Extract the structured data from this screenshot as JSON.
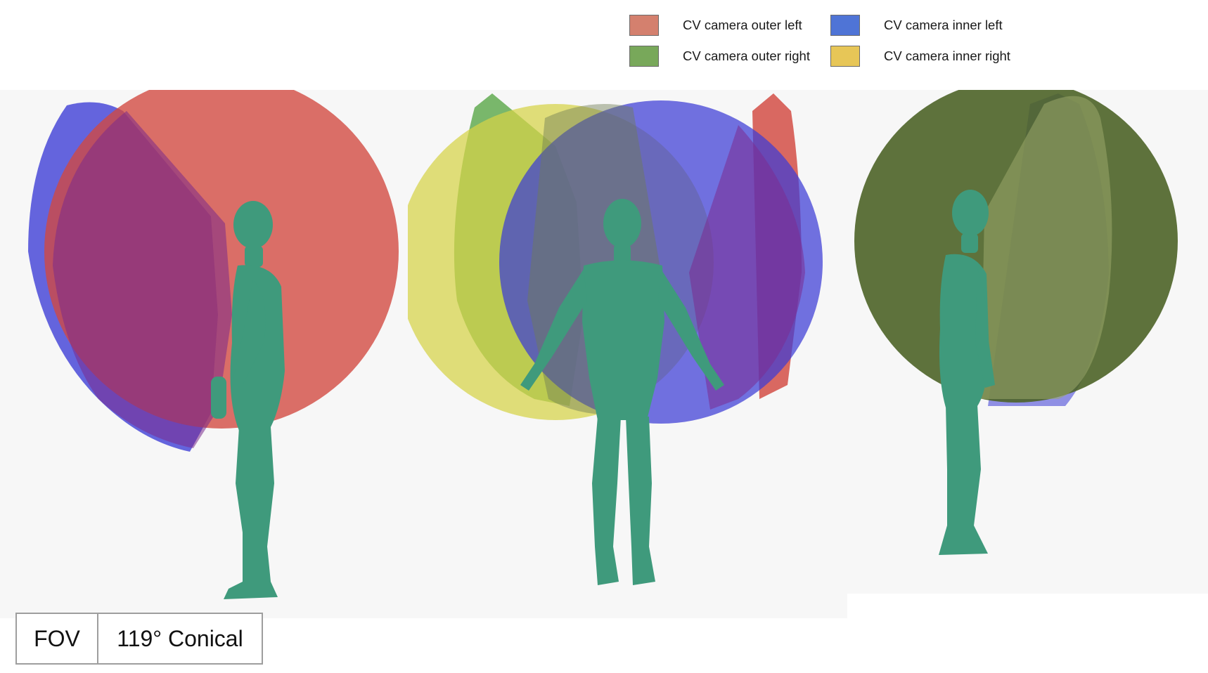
{
  "legend": {
    "items": [
      {
        "label": "CV camera outer left",
        "color": "#d4806e"
      },
      {
        "label": "CV camera outer right",
        "color": "#78a85a"
      },
      {
        "label": "CV camera inner left",
        "color": "#4f74d6"
      },
      {
        "label": "CV camera inner right",
        "color": "#e7c657"
      }
    ]
  },
  "fov_table": {
    "key": "FOV",
    "value": "119° Conical"
  },
  "colors": {
    "body": "#3f9a7c",
    "volume_red": "#d2483f",
    "volume_blue": "#3b3bd6",
    "volume_green": "#5da84c",
    "volume_yellow": "#d6d247",
    "background": "#f7f7f7"
  },
  "views": [
    {
      "id": "side-left"
    },
    {
      "id": "front"
    },
    {
      "id": "side-right"
    }
  ]
}
